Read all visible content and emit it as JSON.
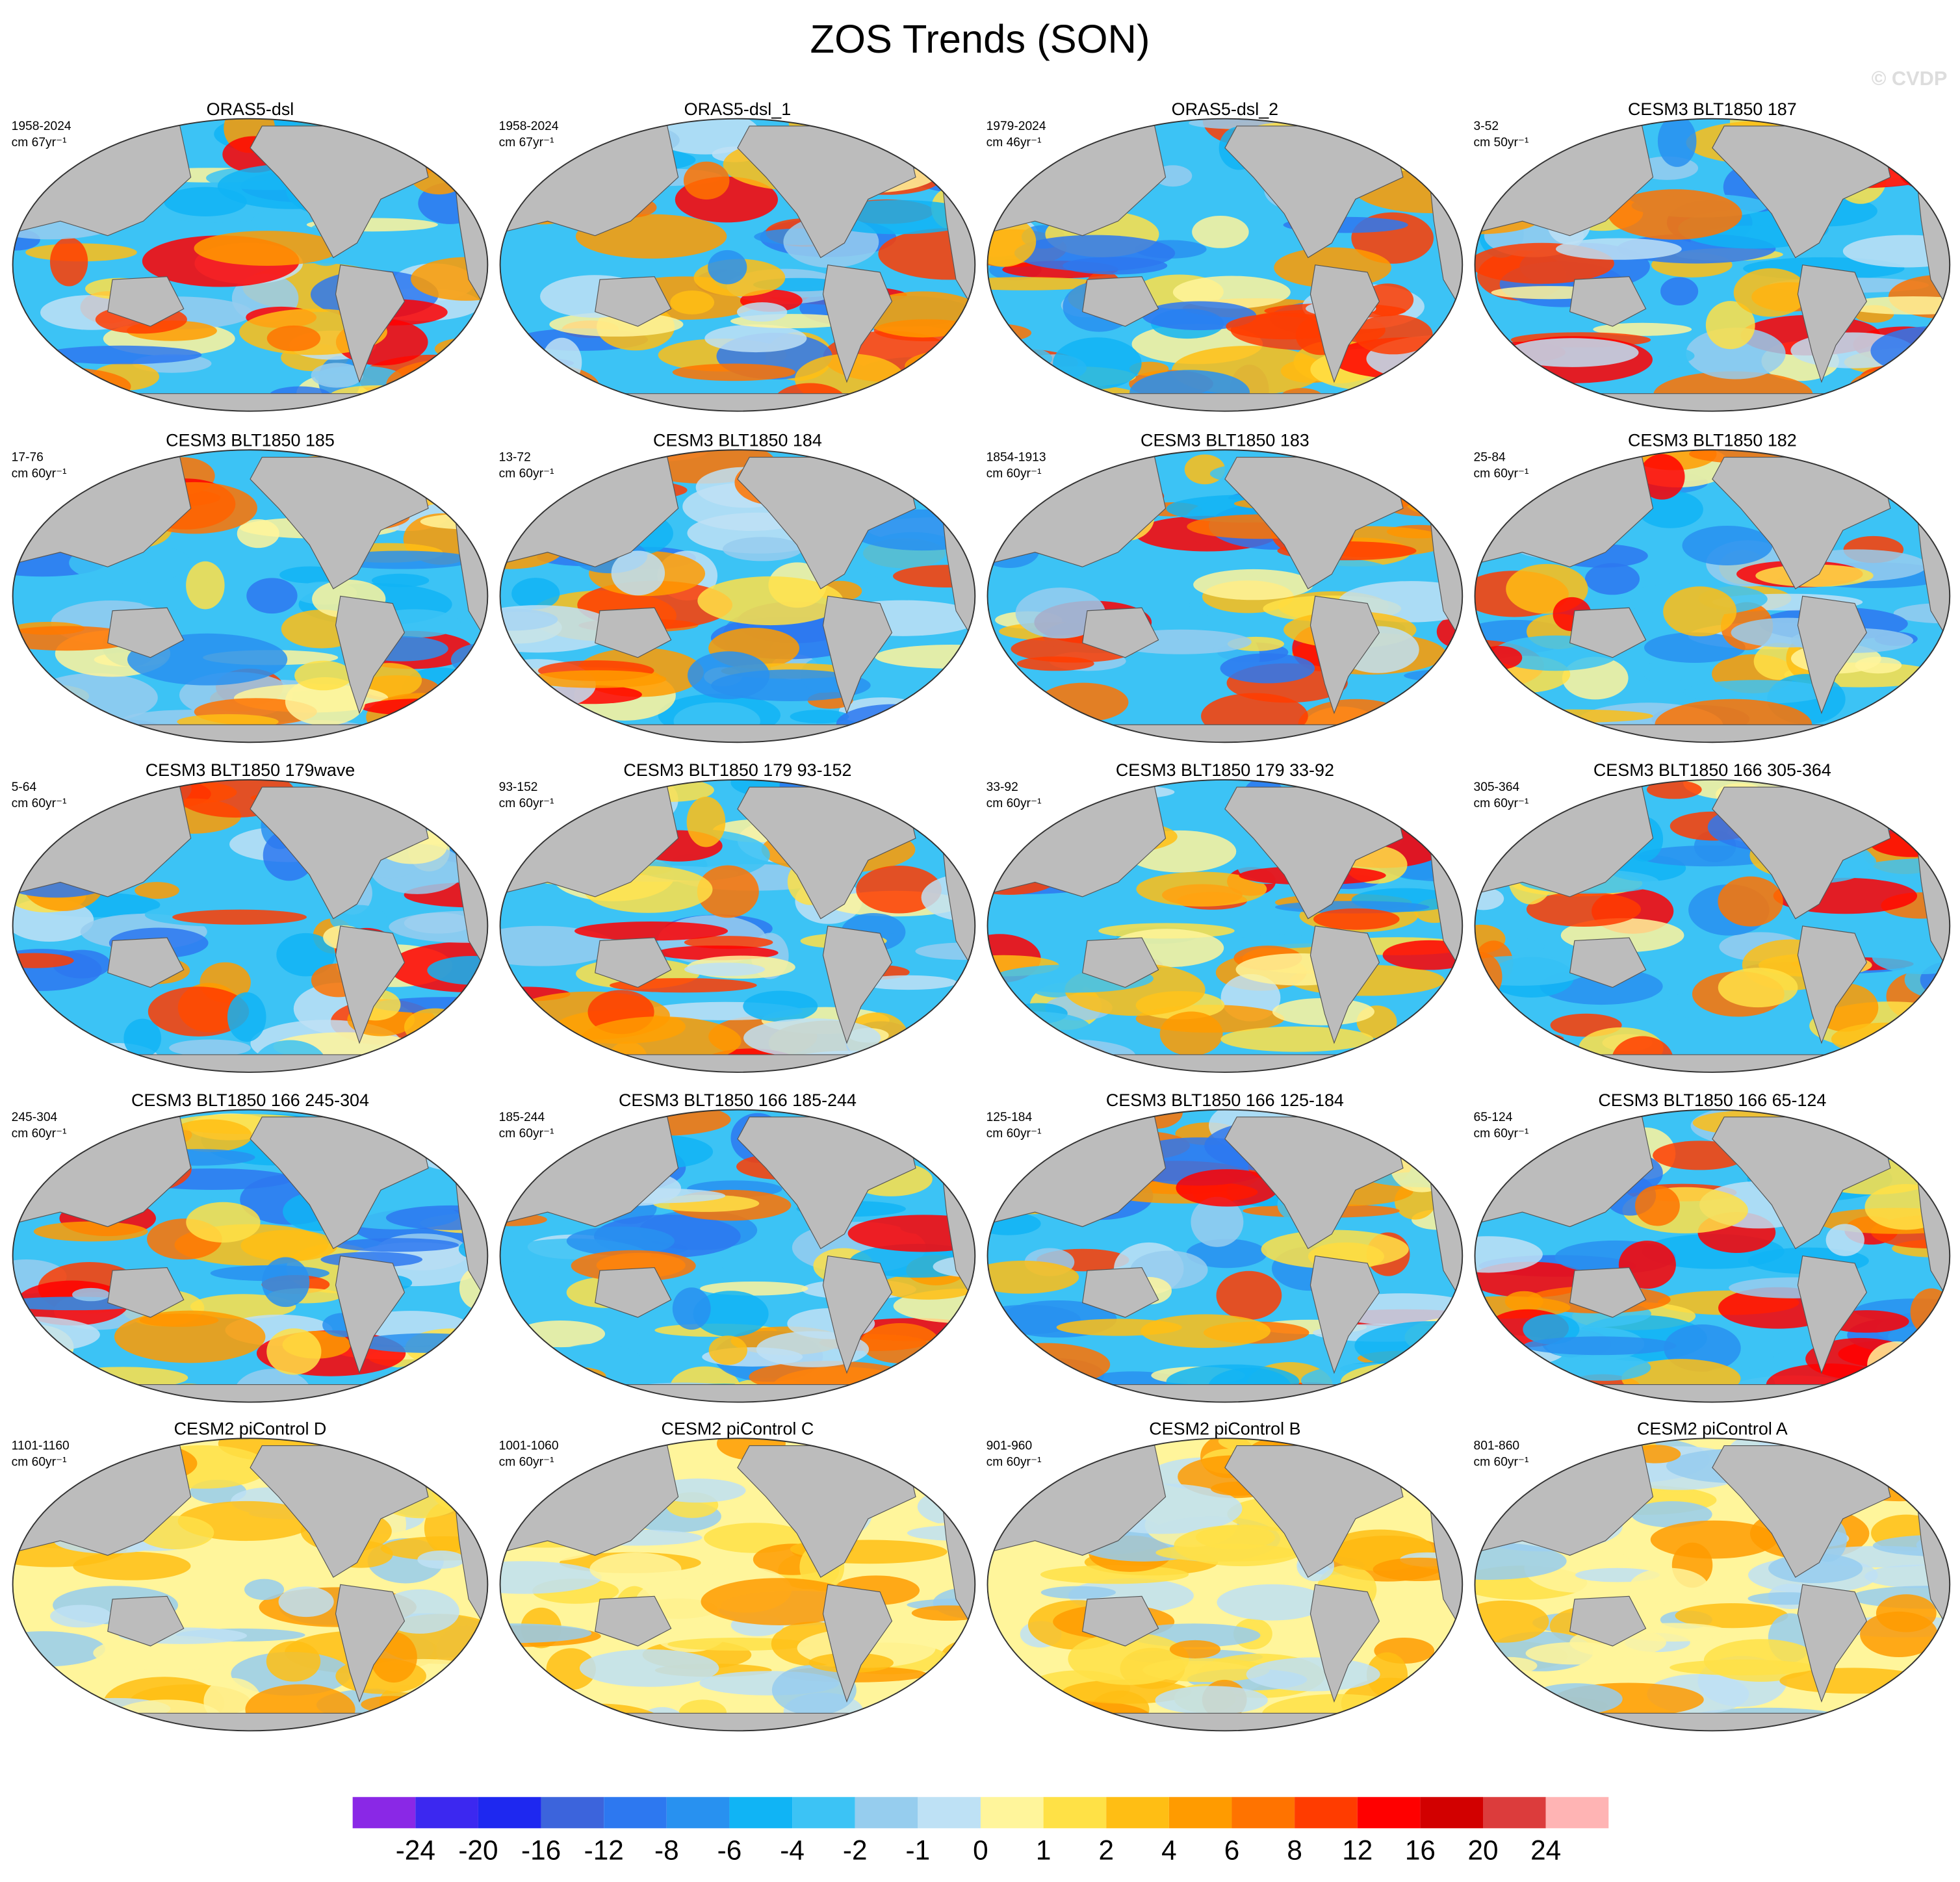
{
  "title": "ZOS Trends (SON)",
  "watermark": "© CVDP",
  "panels": [
    {
      "title": "ORAS5-dsl",
      "period": "1958-2024",
      "units": "cm 67yr⁻¹"
    },
    {
      "title": "ORAS5-dsl_1",
      "period": "1958-2024",
      "units": "cm 67yr⁻¹"
    },
    {
      "title": "ORAS5-dsl_2",
      "period": "1979-2024",
      "units": "cm 46yr⁻¹"
    },
    {
      "title": "CESM3 BLT1850 187",
      "period": "3-52",
      "units": "cm 50yr⁻¹"
    },
    {
      "title": "CESM3 BLT1850 185",
      "period": "17-76",
      "units": "cm 60yr⁻¹"
    },
    {
      "title": "CESM3 BLT1850 184",
      "period": "13-72",
      "units": "cm 60yr⁻¹"
    },
    {
      "title": "CESM3 BLT1850 183",
      "period": "1854-1913",
      "units": "cm 60yr⁻¹"
    },
    {
      "title": "CESM3 BLT1850 182",
      "period": "25-84",
      "units": "cm 60yr⁻¹"
    },
    {
      "title": "CESM3 BLT1850 179wave",
      "period": "5-64",
      "units": "cm 60yr⁻¹"
    },
    {
      "title": "CESM3 BLT1850 179 93-152",
      "period": "93-152",
      "units": "cm 60yr⁻¹"
    },
    {
      "title": "CESM3 BLT1850 179 33-92",
      "period": "33-92",
      "units": "cm 60yr⁻¹"
    },
    {
      "title": "CESM3 BLT1850 166 305-364",
      "period": "305-364",
      "units": "cm 60yr⁻¹"
    },
    {
      "title": "CESM3 BLT1850 166 245-304",
      "period": "245-304",
      "units": "cm 60yr⁻¹"
    },
    {
      "title": "CESM3 BLT1850 166 185-244",
      "period": "185-244",
      "units": "cm 60yr⁻¹"
    },
    {
      "title": "CESM3 BLT1850 166 125-184",
      "period": "125-184",
      "units": "cm 60yr⁻¹"
    },
    {
      "title": "CESM3 BLT1850 166 65-124",
      "period": "65-124",
      "units": "cm 60yr⁻¹"
    },
    {
      "title": "CESM2 piControl D",
      "period": "1101-1160",
      "units": "cm 60yr⁻¹"
    },
    {
      "title": "CESM2 piControl C",
      "period": "1001-1060",
      "units": "cm 60yr⁻¹"
    },
    {
      "title": "CESM2 piControl B",
      "period": "901-960",
      "units": "cm 60yr⁻¹"
    },
    {
      "title": "CESM2 piControl A",
      "period": "801-860",
      "units": "cm 60yr⁻¹"
    }
  ],
  "colorbar": {
    "colors": [
      "#8a28e6",
      "#3c28f0",
      "#1e28f0",
      "#3c64dc",
      "#2d78f0",
      "#2891f0",
      "#10b4f5",
      "#3cc3f5",
      "#96cdee",
      "#bee1f5",
      "#fff59b",
      "#ffe146",
      "#ffbe14",
      "#ff9b00",
      "#ff7300",
      "#ff3c00",
      "#ff0000",
      "#d20000",
      "#dc3c3c",
      "#ffb4b4"
    ],
    "labels": [
      -24,
      -20,
      -16,
      -12,
      -8,
      -6,
      -4,
      -2,
      -1,
      0,
      1,
      2,
      4,
      6,
      8,
      12,
      16,
      20,
      24
    ]
  }
}
